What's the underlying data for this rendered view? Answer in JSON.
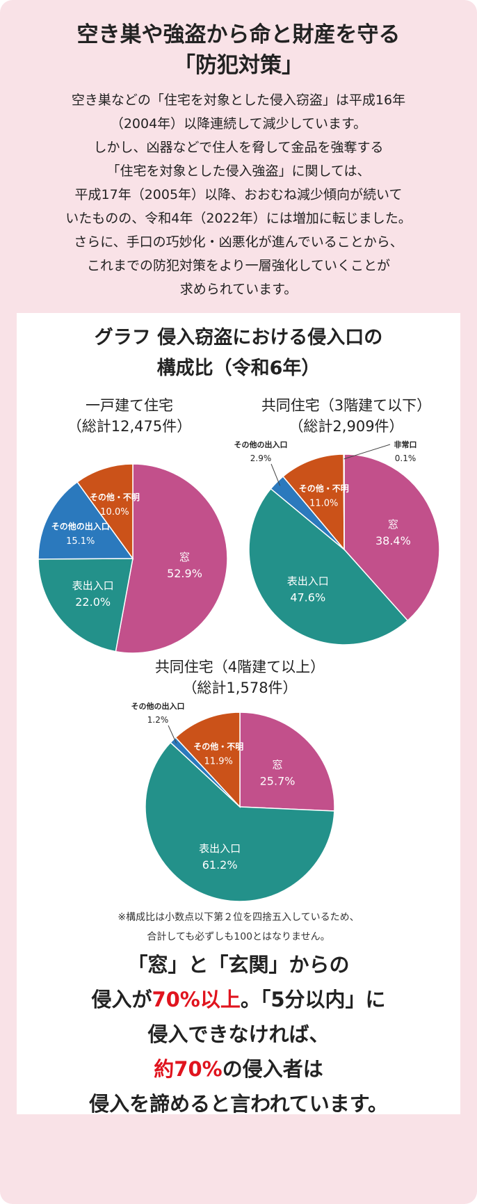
{
  "header": {
    "title_lines": [
      "空き巣や強盗から命と財産を守る",
      "「防犯対策」"
    ]
  },
  "intro_lines": [
    "空き巣などの「住宅を対象とした侵入窃盗」は平成16年",
    "（2004年）以降連続して減少しています。",
    "しかし、凶器などで住人を脅して金品を強奪する",
    "「住宅を対象とした侵入強盗」に関しては、",
    "平成17年（2005年）以降、おおむね減少傾向が続いて",
    "いたものの、令和4年（2022年）には増加に転じました。",
    "さらに、手口の巧妙化・凶悪化が進んでいることから、",
    "これまでの防犯対策をより一層強化していくことが",
    "求められています。"
  ],
  "graph_title_lines": [
    "グラフ 侵入窃盗における侵入口の",
    "構成比（令和6年）"
  ],
  "colors": {
    "窓": "#c2508b",
    "表出入口": "#23918a",
    "その他の出入口": "#2b79bd",
    "その他・不明": "#cb5219",
    "非常口": "#cb5219",
    "accent": "#e0141e",
    "background": "#f9e2e7"
  },
  "chart_data": [
    {
      "type": "pie",
      "title_lines": [
        "一戸建て住宅",
        "（総計12,475件）"
      ],
      "slices": [
        {
          "label": "窓",
          "value": 52.9,
          "text": "52.9%"
        },
        {
          "label": "表出入口",
          "value": 22.0,
          "text": "22.0%"
        },
        {
          "label": "その他の出入口",
          "value": 15.1,
          "text": "15.1%"
        },
        {
          "label": "その他・不明",
          "value": 10.0,
          "text": "10.0%"
        }
      ]
    },
    {
      "type": "pie",
      "title_lines": [
        "共同住宅（3階建て以下）",
        "（総計2,909件）"
      ],
      "slices": [
        {
          "label": "窓",
          "value": 38.4,
          "text": "38.4%"
        },
        {
          "label": "表出入口",
          "value": 47.6,
          "text": "47.6%"
        },
        {
          "label": "その他の出入口",
          "value": 2.9,
          "text": "2.9%"
        },
        {
          "label": "その他・不明",
          "value": 11.0,
          "text": "11.0%"
        },
        {
          "label": "非常口",
          "value": 0.1,
          "text": "0.1%"
        }
      ]
    },
    {
      "type": "pie",
      "title_lines": [
        "共同住宅（4階建て以上）",
        "（総計1,578件）"
      ],
      "slices": [
        {
          "label": "窓",
          "value": 25.7,
          "text": "25.7%"
        },
        {
          "label": "表出入口",
          "value": 61.2,
          "text": "61.2%"
        },
        {
          "label": "その他の出入口",
          "value": 1.2,
          "text": "1.2%"
        },
        {
          "label": "その他・不明",
          "value": 11.9,
          "text": "11.9%"
        }
      ]
    }
  ],
  "note_lines": [
    "※構成比は小数点以下第２位を四捨五入しているため、",
    "合計しても必ずしも100とはなりません。"
  ],
  "conclusion": {
    "l1": "「窓」と「玄関」からの",
    "l2a": "侵入が",
    "l2b": "70%以上",
    "l2c": "。「5分以内」に",
    "l3": "侵入できなければ、",
    "l4a": "約70%",
    "l4b": "の侵入者は",
    "l5": "侵入を諦めると言われています。"
  }
}
